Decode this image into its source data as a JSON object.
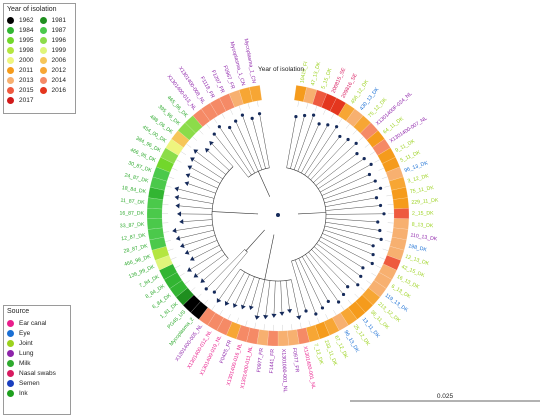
{
  "year_legend": {
    "title": "Year of isolation",
    "items": [
      {
        "label": "1962",
        "color": "#000000"
      },
      {
        "label": "1981",
        "color": "#1f8f1f"
      },
      {
        "label": "1984",
        "color": "#32b532"
      },
      {
        "label": "1987",
        "color": "#4bc94b"
      },
      {
        "label": "1995",
        "color": "#72d72b"
      },
      {
        "label": "1996",
        "color": "#8cdc4a"
      },
      {
        "label": "1998",
        "color": "#b4e640"
      },
      {
        "label": "1999",
        "color": "#dff57a"
      },
      {
        "label": "2000",
        "color": "#eef57e"
      },
      {
        "label": "2006",
        "color": "#f6c659"
      },
      {
        "label": "2011",
        "color": "#f59b1c"
      },
      {
        "label": "2012",
        "color": "#f7a634"
      },
      {
        "label": "2013",
        "color": "#f7b070"
      },
      {
        "label": "2014",
        "color": "#f58a66"
      },
      {
        "label": "2015",
        "color": "#ee5a3f"
      },
      {
        "label": "2016",
        "color": "#e4361e"
      },
      {
        "label": "2017",
        "color": "#d11a1a"
      }
    ]
  },
  "source_legend": {
    "title": "Source",
    "items": [
      {
        "label": "Ear canal",
        "color": "#e91e8c"
      },
      {
        "label": "Eye",
        "color": "#1a6fd4"
      },
      {
        "label": "Joint",
        "color": "#9bd21d"
      },
      {
        "label": "Lung",
        "color": "#8e24aa"
      },
      {
        "label": "Milk",
        "color": "#2eaa2e"
      },
      {
        "label": "Nasal swabs",
        "color": "#d81b60"
      },
      {
        "label": "Semen",
        "color": "#1a3fbf"
      },
      {
        "label": "Ink",
        "color": "#1ea01e"
      }
    ]
  },
  "ring_title": "Year of isolation",
  "scale_bar": {
    "label": "0.025"
  },
  "leaves": [
    {
      "label": "10419_FI",
      "year": "2011",
      "source": "Joint"
    },
    {
      "label": "47_13_DK",
      "year": "2013",
      "source": "Joint"
    },
    {
      "label": "5_15_DK",
      "year": "2015",
      "source": "Joint"
    },
    {
      "label": "200815_SE",
      "year": "2016",
      "source": "Nasal swabs"
    },
    {
      "label": "209816_SE",
      "year": "2016",
      "source": "Nasal swabs"
    },
    {
      "label": "456_12_DK",
      "year": "2012",
      "source": "Joint"
    },
    {
      "label": "430_13_DK",
      "year": "2013",
      "source": "Eye"
    },
    {
      "label": "75_12_DK",
      "year": "2012",
      "source": "Joint"
    },
    {
      "label": "X1301400F-024_NL",
      "year": "2014",
      "source": "Lung"
    },
    {
      "label": "64_11_DK",
      "year": "2011",
      "source": "Joint"
    },
    {
      "label": "X1301400-007_NL",
      "year": "2014",
      "source": "Lung"
    },
    {
      "label": "9_11_DK",
      "year": "2011",
      "source": "Joint"
    },
    {
      "label": "5_11_DK",
      "year": "2011",
      "source": "Joint"
    },
    {
      "label": "96_13_DK",
      "year": "2013",
      "source": "Eye"
    },
    {
      "label": "3_12_DK",
      "year": "2012",
      "source": "Joint"
    },
    {
      "label": "75_11_DK",
      "year": "2011",
      "source": "Joint"
    },
    {
      "label": "229_11_DK",
      "year": "2011",
      "source": "Joint"
    },
    {
      "label": "2_15_DK",
      "year": "2015",
      "source": "Joint"
    },
    {
      "label": "8_13_DK",
      "year": "2013",
      "source": "Joint"
    },
    {
      "label": "110_13_DK",
      "year": "2013",
      "source": "Lung"
    },
    {
      "label": "198_DK",
      "year": "2013",
      "source": "Eye"
    },
    {
      "label": "12_13_DK",
      "year": "2013",
      "source": "Joint"
    },
    {
      "label": "42_15_DK",
      "year": "2015",
      "source": "Joint"
    },
    {
      "label": "16_13_DK",
      "year": "2013",
      "source": "Joint"
    },
    {
      "label": "6_13_DK",
      "year": "2013",
      "source": "Joint"
    },
    {
      "label": "119_13_DK",
      "year": "2013",
      "source": "Eye"
    },
    {
      "label": "213_12_DK",
      "year": "2012",
      "source": "Joint"
    },
    {
      "label": "36_11_DK",
      "year": "2011",
      "source": "Joint"
    },
    {
      "label": "13_11_DK",
      "year": "2011",
      "source": "Eye"
    },
    {
      "label": "25_12_DK",
      "year": "2012",
      "source": "Joint"
    },
    {
      "label": "96_13_DK",
      "year": "2013",
      "source": "Eye"
    },
    {
      "label": "67_12_DK",
      "year": "2012",
      "source": "Joint"
    },
    {
      "label": "233_11_DK",
      "year": "2011",
      "source": "Joint"
    },
    {
      "label": "7_12_DK",
      "year": "2012",
      "source": "Joint"
    },
    {
      "label": "X1301400-001_NL",
      "year": "2014",
      "source": "Ear canal"
    },
    {
      "label": "F0977_FR",
      "year": "2013",
      "source": "Lung"
    },
    {
      "label": "X1301000-001_NL",
      "year": "2013",
      "source": "Lung"
    },
    {
      "label": "F1441_FR",
      "year": "2014",
      "source": "Lung"
    },
    {
      "label": "F0977_FR",
      "year": "2013",
      "source": "Lung"
    },
    {
      "label": "X1301400-011_NL",
      "year": "2014",
      "source": "Ear canal"
    },
    {
      "label": "X1301400-016_NL",
      "year": "2014",
      "source": "Ear canal"
    },
    {
      "label": "F0425_FR",
      "year": "2012",
      "source": "Lung"
    },
    {
      "label": "X1301400-019_NL",
      "year": "2014",
      "source": "Ear canal"
    },
    {
      "label": "X1301400-012_NL",
      "year": "2014",
      "source": "Ear canal"
    },
    {
      "label": "X1301400-005_NL",
      "year": "2014",
      "source": "Lung"
    },
    {
      "label": "Mycoplasma_2",
      "year": "1962",
      "source": "Milk"
    },
    {
      "label": "PG45_US",
      "year": "1962",
      "source": "Milk"
    },
    {
      "label": "1_81_DK",
      "year": "1981",
      "source": "Milk"
    },
    {
      "label": "6_84_DK",
      "year": "1984",
      "source": "Milk"
    },
    {
      "label": "8_84_DK",
      "year": "1984",
      "source": "Milk"
    },
    {
      "label": "7_84_DK",
      "year": "1984",
      "source": "Milk"
    },
    {
      "label": "136_99_DK",
      "year": "1999",
      "source": "Milk"
    },
    {
      "label": "466_98_DK",
      "year": "1998",
      "source": "Milk"
    },
    {
      "label": "28_87_DK",
      "year": "1987",
      "source": "Milk"
    },
    {
      "label": "12_87_DK",
      "year": "1987",
      "source": "Milk"
    },
    {
      "label": "33_87_DK",
      "year": "1987",
      "source": "Milk"
    },
    {
      "label": "16_87_DK",
      "year": "1987",
      "source": "Milk"
    },
    {
      "label": "11_87_DK",
      "year": "1987",
      "source": "Milk"
    },
    {
      "label": "18_84_DK",
      "year": "1984",
      "source": "Milk"
    },
    {
      "label": "24_87_DK",
      "year": "1987",
      "source": "Milk"
    },
    {
      "label": "30_87_DK",
      "year": "1987",
      "source": "Milk"
    },
    {
      "label": "466_95_DK",
      "year": "1995",
      "source": "Milk"
    },
    {
      "label": "384_96_DK",
      "year": "1996",
      "source": "Milk"
    },
    {
      "label": "454_00_DK",
      "year": "2000",
      "source": "Milk"
    },
    {
      "label": "488_06_DK",
      "year": "2006",
      "source": "Milk"
    },
    {
      "label": "395_96_DK",
      "year": "1996",
      "source": "Milk"
    },
    {
      "label": "465_96_DK",
      "year": "1996",
      "source": "Milk"
    },
    {
      "label": "X1301400-013_NL",
      "year": "2014",
      "source": "Lung"
    },
    {
      "label": "X1301400-008_NL",
      "year": "2014",
      "source": "Lung"
    },
    {
      "label": "F1118_FR",
      "year": "2014",
      "source": "Lung"
    },
    {
      "label": "F1207_FR",
      "year": "2014",
      "source": "Lung"
    },
    {
      "label": "F0967_FR",
      "year": "2013",
      "source": "Lung"
    },
    {
      "label": "Mycoplasma_1_CN",
      "year": "2012",
      "source": "Lung"
    },
    {
      "label": "Mycoplasma_1_CN",
      "year": "2012",
      "source": "Lung"
    }
  ]
}
